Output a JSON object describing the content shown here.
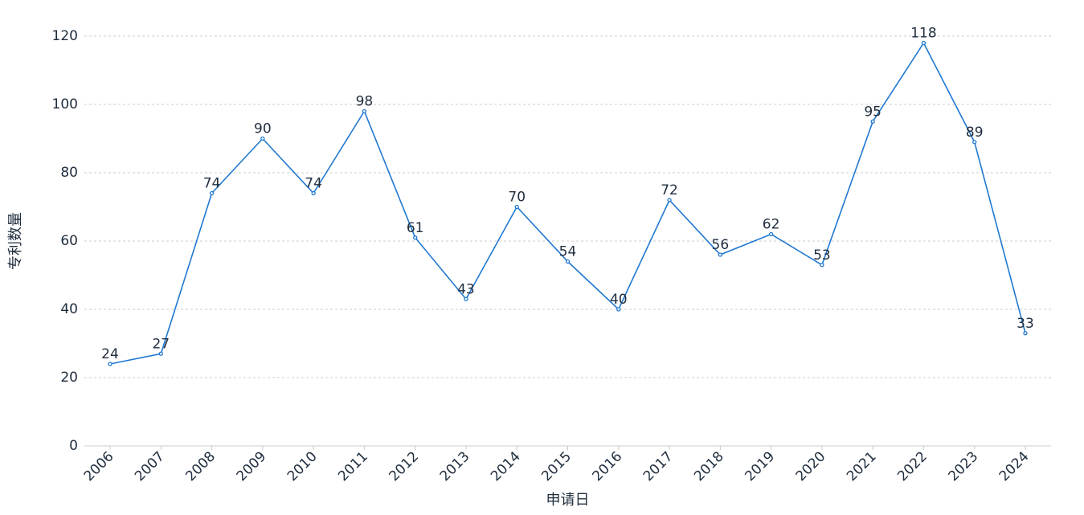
{
  "chart_data": {
    "type": "line",
    "title": "",
    "xlabel": "申请日",
    "ylabel": "专利数量",
    "categories": [
      "2006",
      "2007",
      "2008",
      "2009",
      "2010",
      "2011",
      "2012",
      "2013",
      "2014",
      "2015",
      "2016",
      "2017",
      "2018",
      "2019",
      "2020",
      "2021",
      "2022",
      "2023",
      "2024"
    ],
    "series": [
      {
        "values": [
          24,
          27,
          74,
          90,
          74,
          98,
          61,
          43,
          70,
          54,
          40,
          72,
          56,
          62,
          53,
          95,
          118,
          89,
          33
        ]
      }
    ],
    "ylim": [
      0,
      120
    ],
    "yticks": [
      0,
      20,
      40,
      60,
      80,
      100,
      120
    ],
    "grid": true,
    "data_labels": true,
    "line_color": "#1f78d1"
  }
}
